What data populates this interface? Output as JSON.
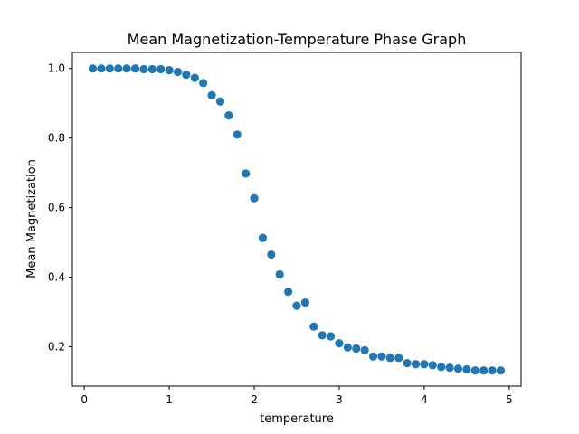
{
  "chart_data": {
    "type": "scatter",
    "title": "Mean Magnetization-Temperature Phase Graph",
    "xlabel": "temperature",
    "ylabel": "Mean Magnetization",
    "xlim": [
      -0.14,
      5.14
    ],
    "ylim": [
      0.087,
      1.046
    ],
    "xticks": [
      0,
      1,
      2,
      3,
      4,
      5
    ],
    "yticks": [
      0.2,
      0.4,
      0.6,
      0.8,
      1.0
    ],
    "xtick_labels": [
      "0",
      "1",
      "2",
      "3",
      "4",
      "5"
    ],
    "ytick_labels": [
      "0.2",
      "0.4",
      "0.6",
      "0.8",
      "1.0"
    ],
    "grid": false,
    "color": "#1f77b4",
    "x": [
      0.1,
      0.2,
      0.3,
      0.4,
      0.5,
      0.6,
      0.7,
      0.8,
      0.9,
      1.0,
      1.1,
      1.2,
      1.3,
      1.4,
      1.5,
      1.6,
      1.7,
      1.8,
      1.9,
      2.0,
      2.1,
      2.2,
      2.3,
      2.4,
      2.5,
      2.6,
      2.7,
      2.8,
      2.9,
      3.0,
      3.1,
      3.2,
      3.3,
      3.4,
      3.5,
      3.6,
      3.7,
      3.8,
      3.9,
      4.0,
      4.1,
      4.2,
      4.3,
      4.4,
      4.5,
      4.6,
      4.7,
      4.8,
      4.9
    ],
    "y": [
      1.0,
      1.0,
      1.0,
      1.0,
      1.0,
      1.0,
      0.998,
      0.998,
      0.998,
      0.995,
      0.99,
      0.982,
      0.973,
      0.958,
      0.923,
      0.905,
      0.865,
      0.81,
      0.698,
      0.627,
      0.513,
      0.465,
      0.408,
      0.358,
      0.318,
      0.327,
      0.258,
      0.233,
      0.23,
      0.21,
      0.198,
      0.195,
      0.19,
      0.172,
      0.172,
      0.168,
      0.168,
      0.153,
      0.15,
      0.15,
      0.147,
      0.142,
      0.14,
      0.137,
      0.135,
      0.132,
      0.132,
      0.132,
      0.132
    ]
  }
}
